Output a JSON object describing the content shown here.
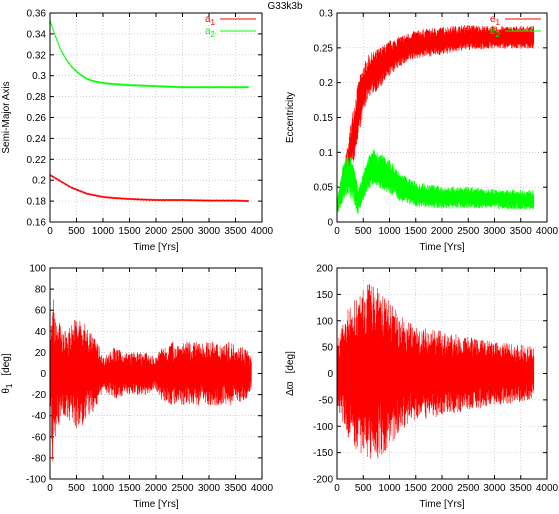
{
  "figure_title": "G33k3b",
  "colors": {
    "red": "#ff0000",
    "green": "#00ff00"
  },
  "chart_data": [
    {
      "id": "semi-major-axis",
      "type": "line",
      "xlabel": "Time [Yrs]",
      "ylabel": "Semi-Major Axis",
      "xlim": [
        0,
        4000
      ],
      "ylim": [
        0.16,
        0.36
      ],
      "xticks": [
        "0",
        "500",
        "1000",
        "1500",
        "2000",
        "2500",
        "3000",
        "3500",
        "4000"
      ],
      "yticks": [
        "0.16",
        "0.18",
        "0.2",
        "0.22",
        "0.24",
        "0.26",
        "0.28",
        "0.3",
        "0.32",
        "0.34",
        "0.36"
      ],
      "grid": true,
      "legend": "top-right",
      "series": [
        {
          "name": "a1",
          "name_base": "a",
          "name_sub": "1",
          "color": "#ff0000",
          "x": [
            0,
            100,
            200,
            300,
            400,
            500,
            600,
            700,
            800,
            900,
            1000,
            1200,
            1500,
            2000,
            2500,
            3000,
            3500,
            3750
          ],
          "y": [
            0.205,
            0.202,
            0.199,
            0.196,
            0.193,
            0.191,
            0.189,
            0.187,
            0.186,
            0.185,
            0.184,
            0.183,
            0.182,
            0.181,
            0.181,
            0.1805,
            0.1805,
            0.18
          ]
        },
        {
          "name": "a2",
          "name_base": "a",
          "name_sub": "2",
          "color": "#00ff00",
          "x": [
            0,
            100,
            200,
            300,
            400,
            500,
            600,
            700,
            800,
            900,
            1000,
            1200,
            1500,
            2000,
            2500,
            3000,
            3500,
            3750
          ],
          "y": [
            0.353,
            0.338,
            0.325,
            0.316,
            0.309,
            0.304,
            0.3,
            0.297,
            0.295,
            0.294,
            0.293,
            0.292,
            0.291,
            0.29,
            0.289,
            0.289,
            0.289,
            0.289
          ]
        }
      ]
    },
    {
      "id": "eccentricity",
      "type": "line",
      "xlabel": "Time [Yrs]",
      "ylabel": "Eccentricity",
      "xlim": [
        0,
        4000
      ],
      "ylim": [
        0,
        0.3
      ],
      "xticks": [
        "0",
        "500",
        "1000",
        "1500",
        "2000",
        "2500",
        "3000",
        "3500",
        "4000"
      ],
      "yticks": [
        "0",
        "0.05",
        "0.1",
        "0.15",
        "0.2",
        "0.25",
        "0.3"
      ],
      "grid": true,
      "legend": "top-right",
      "series": [
        {
          "name": "e1",
          "name_base": "e",
          "name_sub": "1",
          "color": "#ff0000",
          "x": [
            0,
            100,
            200,
            300,
            400,
            500,
            600,
            800,
            1000,
            1200,
            1500,
            2000,
            2500,
            3000,
            3500,
            3750
          ],
          "y": [
            0.02,
            0.05,
            0.08,
            0.12,
            0.16,
            0.19,
            0.21,
            0.22,
            0.235,
            0.245,
            0.255,
            0.26,
            0.265,
            0.265,
            0.265,
            0.265
          ],
          "amp": [
            0.01,
            0.02,
            0.03,
            0.04,
            0.04,
            0.035,
            0.03,
            0.03,
            0.025,
            0.022,
            0.02,
            0.02,
            0.018,
            0.016,
            0.016,
            0.016
          ]
        },
        {
          "name": "e2",
          "name_base": "e",
          "name_sub": "2",
          "color": "#00ff00",
          "x": [
            0,
            100,
            200,
            300,
            400,
            500,
            600,
            700,
            800,
            1000,
            1200,
            1500,
            2000,
            2500,
            3000,
            3500,
            3750
          ],
          "y": [
            0.02,
            0.05,
            0.07,
            0.06,
            0.03,
            0.05,
            0.07,
            0.08,
            0.075,
            0.065,
            0.05,
            0.04,
            0.035,
            0.035,
            0.033,
            0.032,
            0.032
          ],
          "amp": [
            0.01,
            0.03,
            0.03,
            0.03,
            0.02,
            0.02,
            0.025,
            0.025,
            0.025,
            0.025,
            0.02,
            0.018,
            0.016,
            0.015,
            0.014,
            0.014,
            0.014
          ]
        }
      ]
    },
    {
      "id": "theta1",
      "type": "line",
      "xlabel": "Time [Yrs]",
      "ylabel": "θ1 [deg]",
      "ylabel_base": "θ",
      "ylabel_sub": "1",
      "ylabel_unit": "[deg]",
      "xlim": [
        0,
        4000
      ],
      "ylim": [
        -100,
        100
      ],
      "xticks": [
        "0",
        "500",
        "1000",
        "1500",
        "2000",
        "2500",
        "3000",
        "3500",
        "4000"
      ],
      "yticks": [
        "-100",
        "-80",
        "-60",
        "-40",
        "-20",
        "0",
        "20",
        "40",
        "60",
        "80",
        "100"
      ],
      "grid": true,
      "series": [
        {
          "name": "",
          "color": "#ff0000",
          "x": [
            0,
            50,
            100,
            200,
            300,
            500,
            700,
            900,
            1000,
            1200,
            1400,
            1600,
            1800,
            2000,
            2100,
            2300,
            2600,
            3000,
            3400,
            3700,
            3800
          ],
          "y": [
            0,
            0,
            0,
            0,
            0,
            0,
            0,
            0,
            0,
            0,
            0,
            0,
            0,
            0,
            0,
            0,
            0,
            0,
            0,
            0,
            0
          ],
          "amp": [
            20,
            90,
            60,
            45,
            40,
            55,
            45,
            30,
            15,
            25,
            20,
            20,
            20,
            15,
            25,
            30,
            30,
            30,
            30,
            25,
            15
          ]
        }
      ]
    },
    {
      "id": "delta-varpi",
      "type": "line",
      "xlabel": "Time [Yrs]",
      "ylabel": "Δϖ [deg]",
      "ylabel_base": "Δϖ",
      "ylabel_unit": "[deg]",
      "xlim": [
        0,
        4000
      ],
      "ylim": [
        -200,
        200
      ],
      "xticks": [
        "0",
        "500",
        "1000",
        "1500",
        "2000",
        "2500",
        "3000",
        "3500",
        "4000"
      ],
      "yticks": [
        "-200",
        "-150",
        "-100",
        "-50",
        "0",
        "50",
        "100",
        "150",
        "200"
      ],
      "grid": true,
      "series": [
        {
          "name": "",
          "color": "#ff0000",
          "x": [
            0,
            200,
            400,
            600,
            800,
            1000,
            1200,
            1500,
            2000,
            2500,
            3000,
            3500,
            3750
          ],
          "y": [
            0,
            0,
            0,
            0,
            0,
            0,
            0,
            0,
            0,
            0,
            0,
            0,
            0
          ],
          "amp": [
            60,
            120,
            150,
            170,
            160,
            140,
            110,
            90,
            80,
            70,
            60,
            55,
            50
          ]
        }
      ]
    }
  ]
}
